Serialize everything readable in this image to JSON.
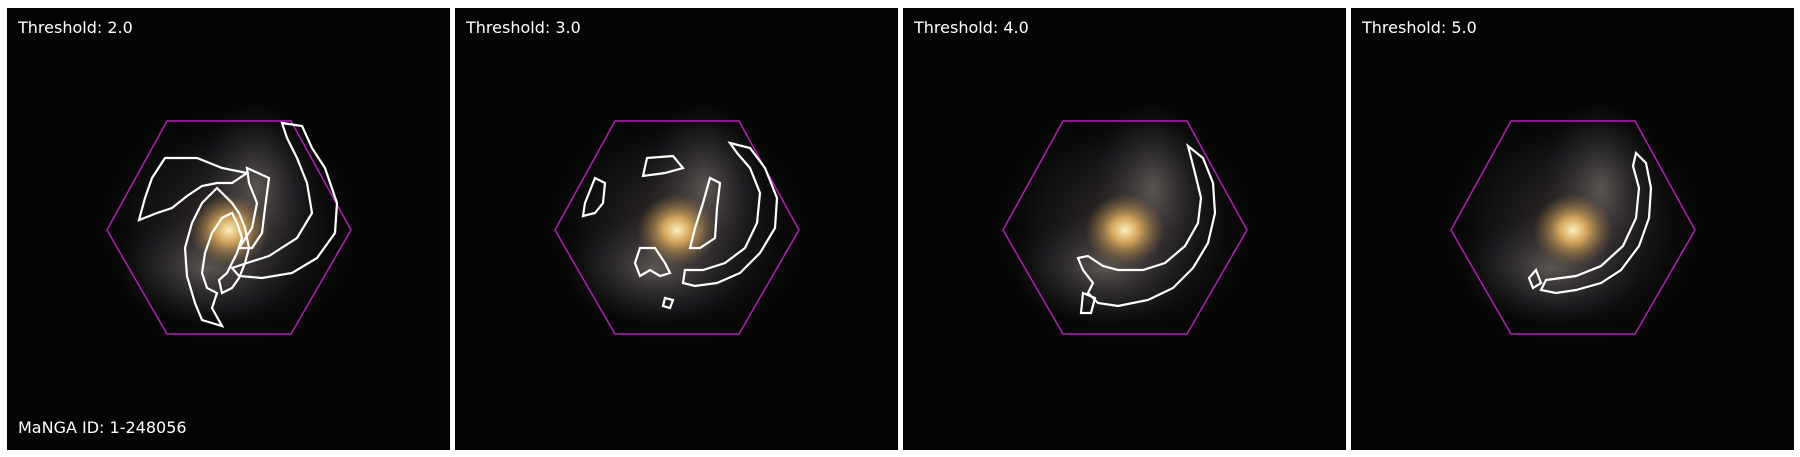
{
  "panels": [
    {
      "threshold_label": "Threshold: 2.0"
    },
    {
      "threshold_label": "Threshold: 3.0"
    },
    {
      "threshold_label": "Threshold: 4.0"
    },
    {
      "threshold_label": "Threshold: 5.0"
    }
  ],
  "manga_id_label": "MaNGA ID: 1-248056",
  "colors": {
    "hexagon": "#b21fb8",
    "contour": "#ffffff",
    "background": "#050505",
    "galaxy_core": "#f6d08a",
    "panel_separator": "#ffffff"
  }
}
